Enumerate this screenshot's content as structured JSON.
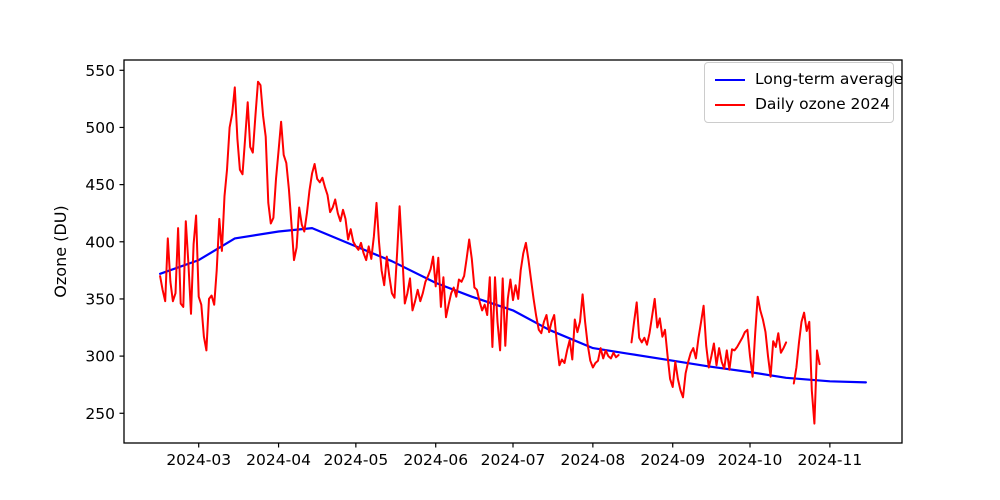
{
  "chart_data": {
    "type": "line",
    "title": "",
    "xlabel": "",
    "ylabel": "Ozone (DU)",
    "grid": false,
    "legend_position": "upper-right",
    "background_color": "#ffffff",
    "axis_color": "#000000",
    "xlim": [
      "2024-02-01",
      "2024-11-29"
    ],
    "ylim": [
      224,
      559
    ],
    "y_ticks": [
      250,
      300,
      350,
      400,
      450,
      500,
      550
    ],
    "x_ticks": [
      {
        "label": "2024-03",
        "date": "2024-03-01"
      },
      {
        "label": "2024-04",
        "date": "2024-04-01"
      },
      {
        "label": "2024-05",
        "date": "2024-05-01"
      },
      {
        "label": "2024-06",
        "date": "2024-06-01"
      },
      {
        "label": "2024-07",
        "date": "2024-07-01"
      },
      {
        "label": "2024-08",
        "date": "2024-08-01"
      },
      {
        "label": "2024-09",
        "date": "2024-09-01"
      },
      {
        "label": "2024-10",
        "date": "2024-10-01"
      },
      {
        "label": "2024-11",
        "date": "2024-11-01"
      }
    ],
    "series": [
      {
        "name": "Long-term average",
        "color": "#0000ff",
        "line_width": 2.2,
        "points": [
          [
            "2024-02-15",
            372
          ],
          [
            "2024-03-01",
            384
          ],
          [
            "2024-03-15",
            403
          ],
          [
            "2024-04-01",
            409
          ],
          [
            "2024-04-14",
            412
          ],
          [
            "2024-05-01",
            396
          ],
          [
            "2024-05-15",
            383
          ],
          [
            "2024-06-01",
            364
          ],
          [
            "2024-06-15",
            352
          ],
          [
            "2024-07-01",
            340
          ],
          [
            "2024-07-15",
            323
          ],
          [
            "2024-08-01",
            307
          ],
          [
            "2024-08-15",
            302
          ],
          [
            "2024-09-01",
            296
          ],
          [
            "2024-09-15",
            291
          ],
          [
            "2024-10-01",
            286
          ],
          [
            "2024-10-15",
            281
          ],
          [
            "2024-11-01",
            278
          ],
          [
            "2024-11-15",
            277
          ]
        ]
      },
      {
        "name": "Daily ozone 2024",
        "color": "#ff0000",
        "line_width": 2,
        "start_date": "2024-02-15",
        "cadence": "daily",
        "values": [
          370,
          358,
          348,
          403,
          365,
          348,
          355,
          412,
          346,
          343,
          418,
          381,
          337,
          398,
          423,
          352,
          345,
          317,
          305,
          350,
          353,
          345,
          375,
          420,
          392,
          440,
          463,
          500,
          512,
          535,
          490,
          463,
          459,
          490,
          522,
          483,
          478,
          510,
          540,
          537,
          510,
          492,
          434,
          416,
          421,
          455,
          480,
          505,
          476,
          469,
          446,
          415,
          384,
          395,
          430,
          415,
          409,
          425,
          445,
          460,
          468,
          455,
          452,
          456,
          448,
          441,
          426,
          430,
          437,
          425,
          418,
          428,
          420,
          402,
          411,
          400,
          396,
          393,
          399,
          390,
          384,
          396,
          385,
          405,
          434,
          400,
          375,
          362,
          387,
          370,
          355,
          351,
          390,
          431,
          390,
          346,
          355,
          368,
          340,
          348,
          358,
          348,
          355,
          365,
          370,
          376,
          387,
          361,
          386,
          343,
          369,
          334,
          345,
          355,
          360,
          352,
          367,
          365,
          370,
          385,
          402,
          385,
          360,
          358,
          348,
          340,
          345,
          336,
          369,
          308,
          369,
          330,
          305,
          368,
          309,
          350,
          367,
          349,
          362,
          350,
          375,
          390,
          399,
          384,
          367,
          350,
          335,
          323,
          320,
          330,
          336,
          321,
          330,
          336,
          312,
          292,
          297,
          294,
          305,
          314,
          297,
          332,
          321,
          330,
          354,
          330,
          310,
          296,
          290,
          294,
          296,
          307,
          298,
          305,
          300,
          298,
          303,
          299,
          301,
          null,
          null,
          null,
          null,
          312,
          330,
          347,
          316,
          312,
          316,
          310,
          320,
          335,
          350,
          325,
          333,
          317,
          323,
          300,
          280,
          273,
          295,
          280,
          270,
          264,
          285,
          295,
          303,
          307,
          298,
          316,
          330,
          344,
          309,
          290,
          300,
          311,
          292,
          307,
          295,
          289,
          305,
          288,
          306,
          305,
          308,
          312,
          316,
          321,
          323,
          300,
          282,
          320,
          352,
          340,
          332,
          321,
          300,
          282,
          313,
          308,
          320,
          303,
          307,
          312,
          null,
          null,
          276,
          290,
          312,
          330,
          338,
          322,
          330,
          270,
          241,
          305,
          293
        ]
      }
    ]
  },
  "legend": {
    "items": [
      {
        "label": "Long-term average"
      },
      {
        "label": "Daily ozone 2024"
      }
    ]
  }
}
